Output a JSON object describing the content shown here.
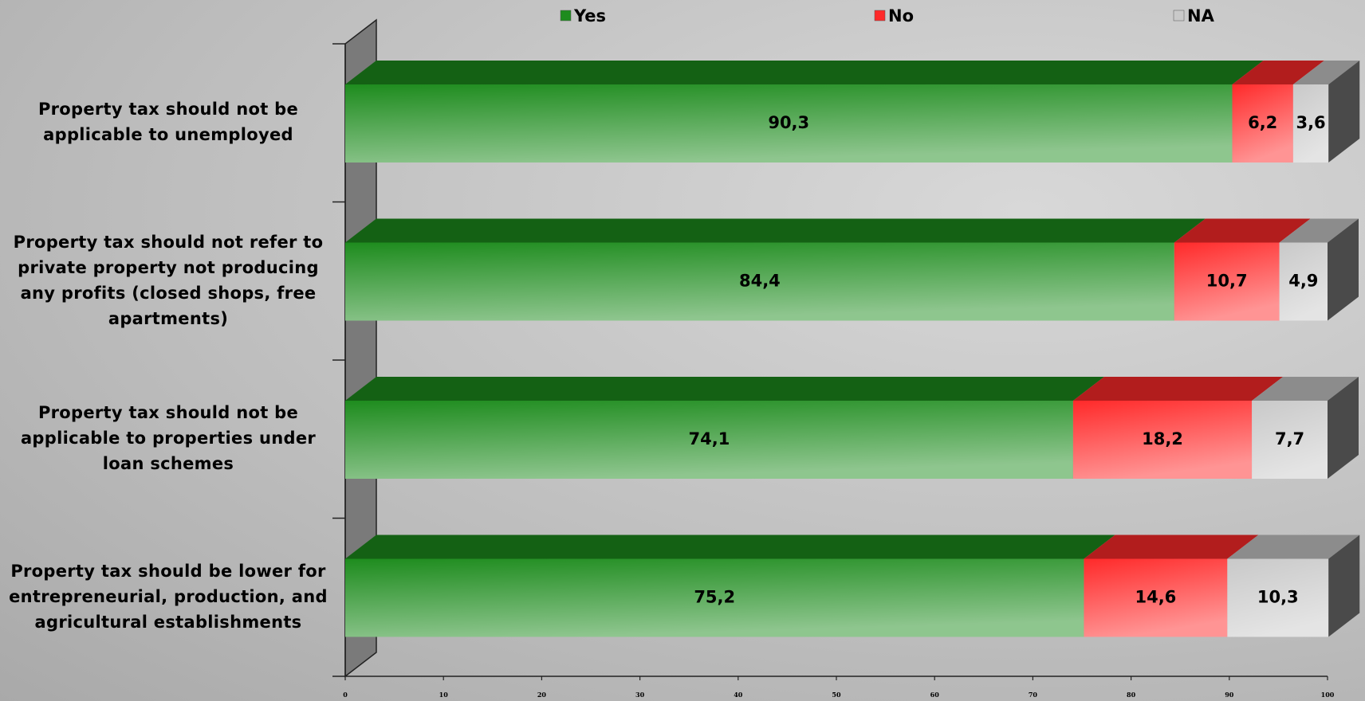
{
  "chart_data": {
    "type": "stacked-bar-3d",
    "categories": [
      "Property tax should not be applicable to unemployed",
      "Property tax should not refer to private property not producing any profits (closed shops, free apartments)",
      "Property tax should not be applicable to properties under loan schemes",
      "Property tax should be lower for entrepreneurial, production, and agricultural establishments"
    ],
    "series": [
      {
        "name": "Yes",
        "color": "#1e8c1e",
        "values": [
          90.3,
          84.4,
          74.1,
          75.2
        ],
        "value_labels": [
          "90,3",
          "84,4",
          "74,1",
          "75,2"
        ]
      },
      {
        "name": "No",
        "color": "#ff2a2a",
        "values": [
          6.2,
          10.7,
          18.2,
          14.6
        ],
        "value_labels": [
          "6,2",
          "10,7",
          "18,2",
          "14,6"
        ]
      },
      {
        "name": "NA",
        "color": "#c9c9c9",
        "values": [
          3.6,
          4.9,
          7.7,
          10.3
        ],
        "value_labels": [
          "3,6",
          "4,9",
          "7,7",
          "10,3"
        ]
      }
    ],
    "xlim": [
      0,
      100
    ],
    "xticks": [
      0,
      10,
      20,
      30,
      40,
      50,
      60,
      70,
      80,
      90,
      100
    ]
  }
}
